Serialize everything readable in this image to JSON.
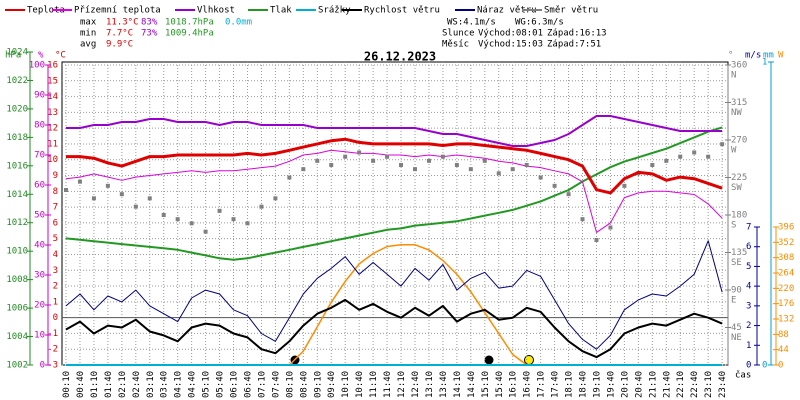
{
  "chart_data": {
    "type": "line",
    "title": "26.12.2023",
    "stats": [
      [
        "max",
        "11.3°C",
        "83%",
        "1018.7hPa",
        "0.0mm"
      ],
      [
        "min",
        "7.7°C",
        "73%",
        "1009.4hPa"
      ],
      [
        "avg",
        "9.9°C"
      ]
    ],
    "wind_stats": [
      "WS:4.1m/s",
      "WG:6.3m/s"
    ],
    "sun": [
      "Slunce",
      "Východ:08:01",
      "Západ:16:13"
    ],
    "moon": [
      "Měsíc",
      "Východ:15:03",
      "Západ:7:51"
    ],
    "x_label": "čas",
    "categories": [
      "00:10",
      "00:40",
      "01:10",
      "01:40",
      "02:10",
      "02:40",
      "03:10",
      "03:40",
      "04:10",
      "04:40",
      "05:10",
      "05:40",
      "06:10",
      "06:40",
      "07:10",
      "07:40",
      "08:10",
      "08:40",
      "09:10",
      "09:40",
      "10:10",
      "10:40",
      "11:10",
      "11:40",
      "12:10",
      "12:40",
      "13:10",
      "13:40",
      "14:10",
      "14:40",
      "15:10",
      "15:40",
      "16:10",
      "16:40",
      "17:10",
      "17:40",
      "18:10",
      "18:40",
      "19:10",
      "19:40",
      "20:10",
      "20:40",
      "21:10",
      "21:40",
      "22:10",
      "22:40",
      "23:10",
      "23:40"
    ],
    "y_label": "°C",
    "ylim": [
      -3,
      16
    ],
    "yticks": [
      -3,
      -2,
      -1,
      0,
      1,
      2,
      3,
      4,
      5,
      6,
      7,
      8,
      9,
      10,
      11,
      12,
      13,
      14,
      15,
      16
    ],
    "grid": true,
    "axes": {
      "hpa": {
        "label": "hPa",
        "color": "#228b22",
        "lim": [
          1002,
          1024
        ],
        "ticks": [
          1002,
          1004,
          1006,
          1008,
          1010,
          1012,
          1014,
          1016,
          1018,
          1020,
          1022,
          1024
        ]
      },
      "hum": {
        "label": "%",
        "color": "#cc00cc",
        "lim": [
          0,
          100
        ],
        "ticks": [
          0,
          10,
          20,
          30,
          40,
          50,
          60,
          70,
          80,
          90,
          100
        ]
      },
      "deg": {
        "label": "°",
        "color": "#808080",
        "lim": [
          0,
          360
        ],
        "ticks": [
          45,
          90,
          135,
          180,
          225,
          270,
          315,
          360
        ],
        "names": [
          "NE",
          "E",
          "SE",
          "S",
          "SW",
          "W",
          "NW",
          "N"
        ]
      },
      "ms": {
        "label": "m/s",
        "color": "#0000a0",
        "lim": [
          0,
          7
        ],
        "ticks": [
          0,
          1,
          2,
          3,
          4,
          5,
          6,
          7
        ]
      },
      "mm": {
        "label": "mm",
        "color": "#00a0d0",
        "lim": [
          0,
          1
        ],
        "ticks": [
          0,
          1
        ]
      },
      "w": {
        "label": "W",
        "color": "#ff8c00",
        "lim": [
          0,
          396
        ],
        "ticks": [
          0,
          44,
          88,
          132,
          176,
          220,
          264,
          308,
          352,
          396
        ]
      }
    },
    "series": [
      {
        "name": "Teplota",
        "color": "#e00000",
        "width": 3,
        "axis": "y",
        "values": [
          10.2,
          10.2,
          10.1,
          9.8,
          9.6,
          9.9,
          10.2,
          10.2,
          10.3,
          10.3,
          10.3,
          10.3,
          10.3,
          10.4,
          10.3,
          10.4,
          10.6,
          10.8,
          11.0,
          11.2,
          11.3,
          11.1,
          11.0,
          11.0,
          11.0,
          11.0,
          11.0,
          10.9,
          11.0,
          11.0,
          10.9,
          10.8,
          10.7,
          10.6,
          10.4,
          10.2,
          10.0,
          9.6,
          8.1,
          7.9,
          8.8,
          9.2,
          9.1,
          8.7,
          8.9,
          8.8,
          8.5,
          8.2
        ]
      },
      {
        "name": "Přízemní teplota",
        "color": "#e000e0",
        "width": 1,
        "axis": "y",
        "values": [
          8.8,
          8.9,
          9.1,
          8.9,
          8.7,
          8.9,
          9.0,
          9.1,
          9.2,
          9.3,
          9.2,
          9.3,
          9.3,
          9.4,
          9.5,
          9.6,
          9.9,
          10.3,
          10.4,
          10.6,
          10.5,
          10.4,
          10.4,
          10.3,
          10.3,
          10.2,
          10.3,
          10.2,
          10.3,
          10.2,
          10.1,
          9.9,
          9.8,
          9.6,
          9.5,
          9.3,
          9.1,
          8.6,
          5.4,
          6.0,
          7.6,
          7.9,
          8.0,
          8.0,
          7.9,
          7.8,
          7.2,
          6.3
        ]
      },
      {
        "name": "Vlhkost",
        "color": "#9900cc",
        "width": 2,
        "axis": "hum",
        "values": [
          79,
          79,
          80,
          80,
          81,
          81,
          82,
          82,
          81,
          81,
          81,
          80,
          81,
          81,
          80,
          80,
          80,
          80,
          79,
          79,
          79,
          79,
          79,
          79,
          79,
          79,
          78,
          77,
          77,
          76,
          75,
          74,
          73,
          73,
          74,
          75,
          77,
          80,
          83,
          83,
          82,
          81,
          80,
          79,
          78,
          78,
          78,
          78
        ]
      },
      {
        "name": "Tlak",
        "color": "#229922",
        "width": 2,
        "axis": "hpa",
        "values": [
          1010.9,
          1010.8,
          1010.7,
          1010.6,
          1010.5,
          1010.4,
          1010.3,
          1010.2,
          1010.1,
          1009.9,
          1009.7,
          1009.5,
          1009.4,
          1009.5,
          1009.7,
          1009.9,
          1010.1,
          1010.3,
          1010.5,
          1010.7,
          1010.9,
          1011.1,
          1011.3,
          1011.5,
          1011.6,
          1011.8,
          1011.9,
          1012.0,
          1012.1,
          1012.3,
          1012.5,
          1012.7,
          1012.9,
          1013.2,
          1013.5,
          1013.9,
          1014.3,
          1014.9,
          1015.4,
          1015.9,
          1016.3,
          1016.6,
          1016.9,
          1017.2,
          1017.6,
          1018.0,
          1018.4,
          1018.7
        ]
      },
      {
        "name": "Srážky",
        "color": "#00b0d0",
        "width": 2,
        "axis": "mm",
        "values": [
          0,
          0,
          0,
          0,
          0,
          0,
          0,
          0,
          0,
          0,
          0,
          0,
          0,
          0,
          0,
          0,
          0,
          0,
          0,
          0,
          0,
          0,
          0,
          0,
          0,
          0,
          0,
          0,
          0,
          0,
          0,
          0,
          0,
          0,
          0,
          0,
          0,
          0,
          0,
          0,
          0,
          0,
          0,
          0,
          0,
          0,
          0,
          0
        ]
      },
      {
        "name": "Rychlost větru",
        "color": "#000000",
        "width": 2,
        "axis": "ms",
        "values": [
          1.8,
          2.2,
          1.6,
          2.0,
          1.9,
          2.3,
          1.7,
          1.5,
          1.2,
          1.9,
          2.1,
          2.0,
          1.6,
          1.4,
          0.8,
          0.6,
          1.2,
          2.0,
          2.6,
          2.9,
          3.3,
          2.8,
          3.1,
          2.7,
          2.4,
          2.9,
          2.5,
          3.0,
          2.2,
          2.6,
          2.8,
          2.3,
          2.4,
          2.9,
          2.7,
          1.9,
          1.2,
          0.7,
          0.4,
          0.8,
          1.6,
          1.9,
          2.1,
          2.0,
          2.3,
          2.6,
          2.4,
          2.1
        ]
      },
      {
        "name": "Náraz větru",
        "color": "#000080",
        "width": 1,
        "axis": "ms",
        "values": [
          3.0,
          3.6,
          2.8,
          3.5,
          3.2,
          3.8,
          3.0,
          2.6,
          2.2,
          3.4,
          3.8,
          3.6,
          2.8,
          2.5,
          1.6,
          1.2,
          2.4,
          3.6,
          4.4,
          4.9,
          5.5,
          4.6,
          5.2,
          4.6,
          4.0,
          4.9,
          4.3,
          5.1,
          3.8,
          4.4,
          4.7,
          3.9,
          4.0,
          4.8,
          4.5,
          3.3,
          2.1,
          1.3,
          0.8,
          1.5,
          2.8,
          3.3,
          3.6,
          3.5,
          4.0,
          4.6,
          6.3,
          3.7
        ]
      },
      {
        "name": "Směr větru",
        "color": "#808080",
        "style": "points",
        "axis": "deg",
        "values": [
          210,
          220,
          200,
          215,
          205,
          190,
          200,
          180,
          175,
          170,
          160,
          185,
          175,
          170,
          190,
          200,
          225,
          235,
          245,
          240,
          250,
          255,
          245,
          250,
          240,
          235,
          245,
          250,
          240,
          235,
          245,
          230,
          235,
          240,
          225,
          215,
          205,
          175,
          150,
          165,
          215,
          230,
          240,
          245,
          250,
          255,
          250,
          265
        ]
      }
    ],
    "radiation": {
      "color": "#ff8c00",
      "width": 1.5,
      "axis": "w",
      "values": [
        null,
        null,
        null,
        null,
        null,
        null,
        null,
        null,
        null,
        null,
        null,
        null,
        null,
        null,
        null,
        null,
        0,
        40,
        110,
        180,
        240,
        290,
        320,
        340,
        345,
        345,
        330,
        300,
        260,
        210,
        150,
        90,
        30,
        0,
        null,
        null,
        null,
        null,
        null,
        null,
        null,
        null,
        null,
        null,
        null,
        null,
        null,
        null
      ]
    }
  }
}
